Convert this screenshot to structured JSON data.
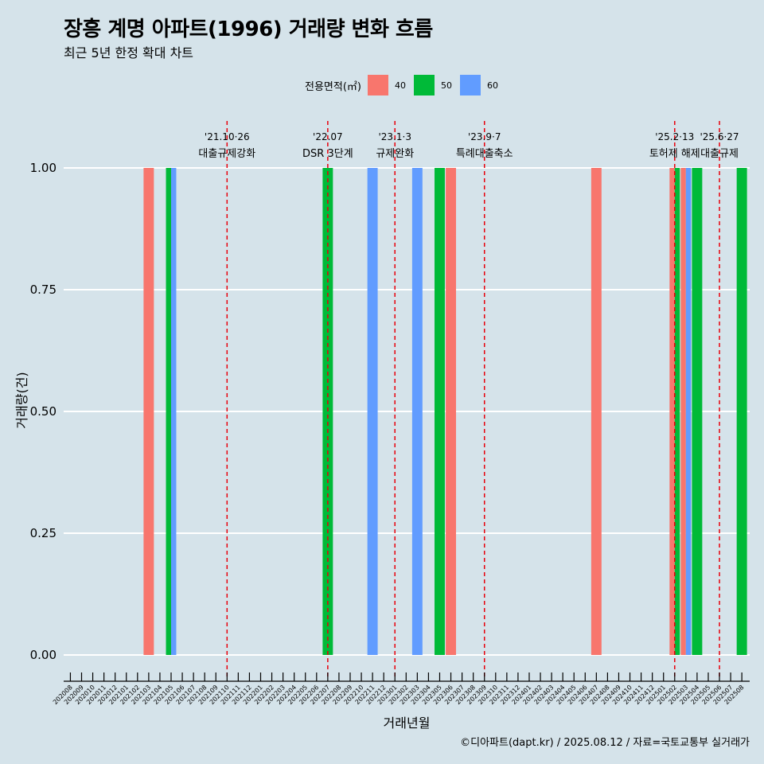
{
  "title": "장흥 계명 아파트(1996) 거래량 변화 흐름",
  "subtitle": "최근 5년 한정 확대 차트",
  "legend": {
    "title": "전용면적(㎡)",
    "items": [
      {
        "label": "40",
        "color": "#f8766d"
      },
      {
        "label": "50",
        "color": "#00ba38"
      },
      {
        "label": "60",
        "color": "#619cff"
      }
    ]
  },
  "caption": "©디아파트(dapt.kr) / 2025.08.12 / 자료=국토교통부 실거래가",
  "chart_data": {
    "type": "bar",
    "title": "장흥 계명 아파트(1996) 거래량 변화 흐름",
    "xlabel": "거래년월",
    "ylabel": "거래량(건)",
    "ylim": [
      0,
      1
    ],
    "yticks": [
      "0.00",
      "0.25",
      "0.50",
      "0.75",
      "1.00"
    ],
    "categories": [
      "202008",
      "202009",
      "202010",
      "202011",
      "202012",
      "202101",
      "202102",
      "202103",
      "202104",
      "202105",
      "202106",
      "202107",
      "202108",
      "202109",
      "202110",
      "202111",
      "202112",
      "202201",
      "202202",
      "202203",
      "202204",
      "202205",
      "202206",
      "202207",
      "202208",
      "202209",
      "202210",
      "202211",
      "202212",
      "202301",
      "202302",
      "202303",
      "202304",
      "202305",
      "202306",
      "202307",
      "202308",
      "202309",
      "202310",
      "202311",
      "202312",
      "202401",
      "202402",
      "202403",
      "202404",
      "202405",
      "202406",
      "202407",
      "202408",
      "202409",
      "202410",
      "202411",
      "202412",
      "202501",
      "202502",
      "202503",
      "202504",
      "202505",
      "202506",
      "202507",
      "202508"
    ],
    "bars": [
      {
        "month": "202103",
        "area": "40",
        "value": 1
      },
      {
        "month": "202105",
        "area": "50",
        "value": 1
      },
      {
        "month": "202105",
        "area": "60",
        "value": 1
      },
      {
        "month": "202207",
        "area": "50",
        "value": 1
      },
      {
        "month": "202211",
        "area": "60",
        "value": 1
      },
      {
        "month": "202303",
        "area": "60",
        "value": 1
      },
      {
        "month": "202305",
        "area": "50",
        "value": 1
      },
      {
        "month": "202306",
        "area": "40",
        "value": 1
      },
      {
        "month": "202407",
        "area": "40",
        "value": 1
      },
      {
        "month": "202502",
        "area": "40",
        "value": 1
      },
      {
        "month": "202502",
        "area": "50",
        "value": 1
      },
      {
        "month": "202503",
        "area": "40",
        "value": 1
      },
      {
        "month": "202503",
        "area": "60",
        "value": 1
      },
      {
        "month": "202504",
        "area": "50",
        "value": 1
      },
      {
        "month": "202508",
        "area": "50",
        "value": 1
      }
    ],
    "annotations": [
      {
        "month": "202110",
        "date": "'21.10·26",
        "label": "대출규제강화"
      },
      {
        "month": "202207",
        "date": "'22.07",
        "label": "DSR 3단계"
      },
      {
        "month": "202301",
        "date": "'23.1·3",
        "label": "규제완화"
      },
      {
        "month": "202309",
        "date": "'23.9·7",
        "label": "특례대출축소"
      },
      {
        "month": "202502",
        "date": "'25.2·13",
        "label": "토허제 해제"
      },
      {
        "month": "202506",
        "date": "'25.6·27",
        "label": "대출규제"
      }
    ]
  }
}
